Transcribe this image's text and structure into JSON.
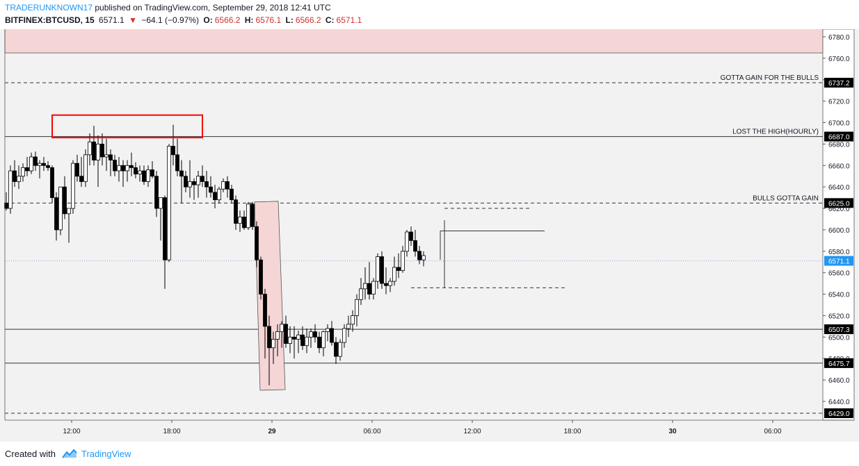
{
  "header": {
    "author": "TRADERUNKNOWN17",
    "published_text": "published on TradingView.com, September 29, 2018 12:41 UTC",
    "symbol": "BITFINEX:BTCUSD, 15",
    "last_price": "6571.1",
    "change": "−64.1 (−0.97%)",
    "open_label": "O:",
    "open": "6566.2",
    "high_label": "H:",
    "high": "6576.1",
    "low_label": "L:",
    "low": "6566.2",
    "close_label": "C:",
    "close": "6571.1"
  },
  "footer": {
    "created_with": "Created with",
    "brand": "TradingView"
  },
  "colors": {
    "background": "#f2f2f2",
    "candle_up": "#ffffff",
    "candle_down": "#000000",
    "zone_fill": "#f5d5d5",
    "box_red": "#ff0000",
    "last_price_line": "#9fa8da"
  },
  "chart_data": {
    "type": "candlestick",
    "ylim": [
      6420,
      6790
    ],
    "y_ticks": [
      6440,
      6460,
      6480,
      6500,
      6520,
      6540,
      6560,
      6580,
      6600,
      6620,
      6640,
      6660,
      6680,
      6700,
      6720,
      6740,
      6760,
      6780
    ],
    "y_tick_labels": [
      "6440.0",
      "6460.0",
      "6480.0",
      "6500.0",
      "6520.0",
      "6540.0",
      "6560.0",
      "6580.0",
      "6600.0",
      "6620.0",
      "6640.0",
      "6660.0",
      "6680.0",
      "6700.0",
      "6720.0",
      "6740.0",
      "6760.0",
      "6780.0"
    ],
    "x_ticks": [
      {
        "label": "12:00",
        "t": 16,
        "bold": false
      },
      {
        "label": "18:00",
        "t": 40,
        "bold": false
      },
      {
        "label": "29",
        "t": 64,
        "bold": true
      },
      {
        "label": "06:00",
        "t": 88,
        "bold": false
      },
      {
        "label": "12:00",
        "t": 112,
        "bold": false
      },
      {
        "label": "18:00",
        "t": 136,
        "bold": false
      },
      {
        "label": "30",
        "t": 160,
        "bold": true
      },
      {
        "label": "06:00",
        "t": 184,
        "bold": false
      }
    ],
    "levels": [
      {
        "value": 6737.2,
        "label": "6737.2",
        "style": "dashed",
        "annotation": "GOTTA GAIN FOR THE BULLS"
      },
      {
        "value": 6687.0,
        "label": "6687.0",
        "style": "solid",
        "annotation": "LOST THE HIGH(HOURLY)"
      },
      {
        "value": 6625.0,
        "label": "6625.0",
        "style": "dashed",
        "annotation": "BULLS GOTTA GAIN"
      },
      {
        "value": 6507.3,
        "label": "6507.3",
        "style": "solid",
        "annotation": ""
      },
      {
        "value": 6475.7,
        "label": "6475.7",
        "style": "solid",
        "annotation": ""
      },
      {
        "value": 6429.0,
        "label": "6429.0",
        "style": "dashed",
        "annotation": ""
      }
    ],
    "last_price": {
      "value": 6571.1,
      "label": "6571.1"
    },
    "resistance_zone": {
      "y_from": 6765,
      "y_to": 6790
    },
    "red_box": {
      "t_from": 11,
      "t_to": 47,
      "y_from": 6686,
      "y_to": 6707
    },
    "drop_zone": {
      "t_from": 59.5,
      "t_to": 66.5,
      "y_top": 6626,
      "y_bottom": 6451
    },
    "extra_lines": [
      {
        "t_from": 104,
        "t_to": 129,
        "y": 6599,
        "style": "solid"
      },
      {
        "t_from": 105,
        "t_to": 129,
        "y": 6609,
        "style": "solid-vertical-start"
      },
      {
        "t_from": 105,
        "t_to": 126,
        "y": 6620,
        "style": "dashed"
      },
      {
        "t_from": 97,
        "t_to": 134,
        "y": 6546,
        "style": "dashed"
      }
    ],
    "candles_start_t": 0,
    "ohlc": [
      [
        6625,
        6635,
        6618,
        6620
      ],
      [
        6620,
        6660,
        6615,
        6655
      ],
      [
        6655,
        6665,
        6640,
        6645
      ],
      [
        6645,
        6660,
        6638,
        6650
      ],
      [
        6650,
        6662,
        6645,
        6658
      ],
      [
        6658,
        6668,
        6650,
        6655
      ],
      [
        6655,
        6672,
        6652,
        6668
      ],
      [
        6668,
        6673,
        6655,
        6660
      ],
      [
        6660,
        6665,
        6648,
        6662
      ],
      [
        6662,
        6668,
        6655,
        6660
      ],
      [
        6660,
        6664,
        6655,
        6658
      ],
      [
        6658,
        6660,
        6625,
        6630
      ],
      [
        6630,
        6635,
        6590,
        6600
      ],
      [
        6600,
        6640,
        6595,
        6640
      ],
      [
        6640,
        6650,
        6610,
        6615
      ],
      [
        6615,
        6620,
        6588,
        6620
      ],
      [
        6620,
        6665,
        6615,
        6662
      ],
      [
        6662,
        6670,
        6645,
        6650
      ],
      [
        6650,
        6668,
        6640,
        6645
      ],
      [
        6645,
        6675,
        6640,
        6670
      ],
      [
        6670,
        6690,
        6660,
        6682
      ],
      [
        6682,
        6697,
        6660,
        6665
      ],
      [
        6665,
        6688,
        6640,
        6680
      ],
      [
        6680,
        6690,
        6660,
        6668
      ],
      [
        6668,
        6685,
        6655,
        6670
      ],
      [
        6670,
        6675,
        6650,
        6665
      ],
      [
        6665,
        6670,
        6650,
        6655
      ],
      [
        6655,
        6668,
        6645,
        6660
      ],
      [
        6660,
        6665,
        6640,
        6655
      ],
      [
        6655,
        6665,
        6645,
        6660
      ],
      [
        6660,
        6672,
        6650,
        6658
      ],
      [
        6658,
        6663,
        6648,
        6652
      ],
      [
        6652,
        6660,
        6645,
        6655
      ],
      [
        6655,
        6660,
        6642,
        6645
      ],
      [
        6645,
        6660,
        6640,
        6656
      ],
      [
        6656,
        6664,
        6648,
        6650
      ],
      [
        6650,
        6655,
        6612,
        6620
      ],
      [
        6620,
        6630,
        6590,
        6630
      ],
      [
        6630,
        6632,
        6545,
        6572
      ],
      [
        6572,
        6680,
        6570,
        6678
      ],
      [
        6678,
        6698,
        6660,
        6670
      ],
      [
        6670,
        6685,
        6650,
        6655
      ],
      [
        6655,
        6665,
        6625,
        6650
      ],
      [
        6650,
        6655,
        6635,
        6640
      ],
      [
        6640,
        6665,
        6630,
        6645
      ],
      [
        6645,
        6648,
        6628,
        6642
      ],
      [
        6642,
        6655,
        6630,
        6650
      ],
      [
        6650,
        6660,
        6640,
        6645
      ],
      [
        6645,
        6655,
        6630,
        6640
      ],
      [
        6640,
        6650,
        6630,
        6635
      ],
      [
        6635,
        6642,
        6620,
        6628
      ],
      [
        6628,
        6640,
        6625,
        6638
      ],
      [
        6638,
        6648,
        6635,
        6645
      ],
      [
        6645,
        6650,
        6630,
        6638
      ],
      [
        6638,
        6642,
        6625,
        6628
      ],
      [
        6628,
        6632,
        6600,
        6606
      ],
      [
        6606,
        6618,
        6598,
        6612
      ],
      [
        6612,
        6618,
        6600,
        6602
      ],
      [
        6602,
        6626,
        6600,
        6624
      ],
      [
        6624,
        6626,
        6600,
        6603
      ],
      [
        6603,
        6608,
        6565,
        6572
      ],
      [
        6572,
        6575,
        6535,
        6540
      ],
      [
        6540,
        6545,
        6480,
        6510
      ],
      [
        6510,
        6520,
        6455,
        6490
      ],
      [
        6490,
        6505,
        6475,
        6498
      ],
      [
        6498,
        6512,
        6482,
        6505
      ],
      [
        6505,
        6515,
        6490,
        6512
      ],
      [
        6512,
        6520,
        6490,
        6494
      ],
      [
        6494,
        6510,
        6485,
        6500
      ],
      [
        6500,
        6510,
        6480,
        6498
      ],
      [
        6498,
        6506,
        6485,
        6502
      ],
      [
        6502,
        6510,
        6488,
        6492
      ],
      [
        6492,
        6508,
        6485,
        6500
      ],
      [
        6500,
        6508,
        6490,
        6505
      ],
      [
        6505,
        6512,
        6495,
        6500
      ],
      [
        6500,
        6505,
        6485,
        6490
      ],
      [
        6490,
        6506,
        6482,
        6505
      ],
      [
        6505,
        6512,
        6496,
        6508
      ],
      [
        6508,
        6515,
        6492,
        6495
      ],
      [
        6495,
        6500,
        6475,
        6482
      ],
      [
        6482,
        6498,
        6478,
        6495
      ],
      [
        6495,
        6512,
        6490,
        6508
      ],
      [
        6508,
        6520,
        6500,
        6512
      ],
      [
        6512,
        6525,
        6505,
        6520
      ],
      [
        6520,
        6540,
        6510,
        6535
      ],
      [
        6535,
        6555,
        6530,
        6545
      ],
      [
        6545,
        6565,
        6535,
        6550
      ],
      [
        6550,
        6570,
        6535,
        6540
      ],
      [
        6540,
        6555,
        6535,
        6552
      ],
      [
        6552,
        6578,
        6545,
        6575
      ],
      [
        6575,
        6580,
        6545,
        6550
      ],
      [
        6550,
        6565,
        6540,
        6548
      ],
      [
        6548,
        6555,
        6542,
        6552
      ],
      [
        6552,
        6575,
        6548,
        6565
      ],
      [
        6565,
        6578,
        6555,
        6562
      ],
      [
        6562,
        6585,
        6560,
        6580
      ],
      [
        6580,
        6600,
        6575,
        6598
      ],
      [
        6598,
        6603,
        6585,
        6590
      ],
      [
        6590,
        6600,
        6575,
        6580
      ],
      [
        6580,
        6585,
        6568,
        6572
      ],
      [
        6572,
        6580,
        6566,
        6576
      ]
    ]
  }
}
